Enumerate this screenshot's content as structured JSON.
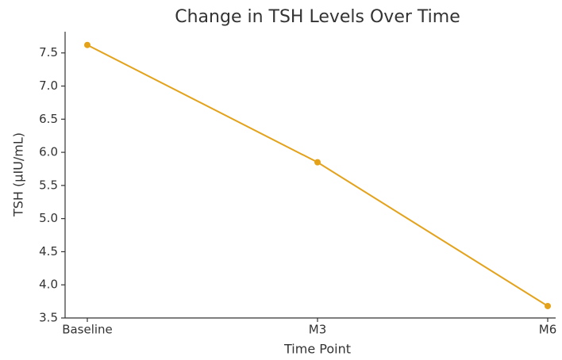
{
  "chart_data": {
    "type": "line",
    "title": "Change in TSH Levels Over Time",
    "x_label": "Time Point",
    "y_label": "TSH (µIU/mL)",
    "categories": [
      "Baseline",
      "M3",
      "M6"
    ],
    "series": [
      {
        "name": "TSH",
        "color": "#e3a21a",
        "values": [
          7.62,
          5.85,
          3.68
        ]
      }
    ],
    "ylim": [
      3.5,
      7.82
    ],
    "yticks": [
      3.5,
      {
        "value": 4,
        "label": "4.0"
      },
      4.5,
      {
        "value": 5,
        "label": "5.0"
      },
      5.5,
      {
        "value": 6,
        "label": "6.0"
      },
      6.5,
      {
        "value": 7,
        "label": "7.0"
      },
      7.5
    ],
    "grid": false
  }
}
